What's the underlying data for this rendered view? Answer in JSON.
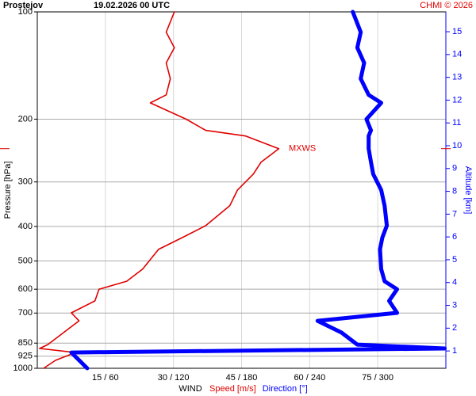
{
  "chart_data": {
    "type": "profile",
    "title": "Prostejov",
    "subtitle": "19.02.2026 00 UTC",
    "credit": "CHMI © 2026",
    "ylabel": "Pressure [hPa]",
    "y2label": "Altitude [km]",
    "xlabel": "WIND",
    "ylog": true,
    "ylim": [
      1000,
      100
    ],
    "yticks": [
      100,
      200,
      300,
      400,
      500,
      600,
      700,
      850,
      925,
      1000
    ],
    "y2lim": [
      0.24,
      15.87
    ],
    "y2ticks": [
      1,
      2,
      3,
      4,
      5,
      6,
      7,
      8,
      9,
      10,
      11,
      12,
      13,
      14,
      15
    ],
    "xlim": [
      0,
      90
    ],
    "x2lim": [
      0,
      360
    ],
    "xticks": [
      {
        "value": 15,
        "label": "15 / 60"
      },
      {
        "value": 30,
        "label": "30 / 120"
      },
      {
        "value": 45,
        "label": "45 / 180"
      },
      {
        "value": 60,
        "label": "60 / 240"
      },
      {
        "value": 75,
        "label": "75 / 300"
      }
    ],
    "grid": true,
    "pressure": [
      1000,
      950,
      903,
      880,
      858,
      794,
      736,
      699,
      647,
      600,
      570,
      527,
      464,
      430,
      398,
      350,
      316,
      285,
      264,
      242,
      223,
      215,
      200,
      180,
      171,
      154,
      139,
      126,
      114,
      100
    ],
    "series": [
      {
        "name": "Speed [m/s]",
        "color": "#e00000",
        "axis": "x",
        "values": [
          1.4,
          4,
          8.4,
          0.5,
          2.3,
          5.8,
          9.2,
          7.5,
          12.7,
          13.6,
          19.7,
          23.2,
          26.7,
          31.9,
          37.1,
          42.4,
          44.1,
          47.6,
          49.3,
          53.2,
          45.9,
          37.1,
          32.8,
          24.9,
          28.4,
          29.3,
          28.4,
          30.2,
          28.4,
          30.2
        ]
      },
      {
        "name": "Direction [°]",
        "color": "#0000ff",
        "axis": "x2",
        "values": [
          44,
          37,
          30,
          359,
          282,
          268,
          247,
          317,
          310,
          317,
          306,
          303,
          302,
          304,
          308,
          306,
          303,
          296,
          294,
          292,
          292,
          294,
          290,
          303,
          292,
          285,
          288,
          282,
          285,
          278
        ]
      }
    ],
    "annotation": {
      "text": "MXWS",
      "pressure": 242
    }
  }
}
